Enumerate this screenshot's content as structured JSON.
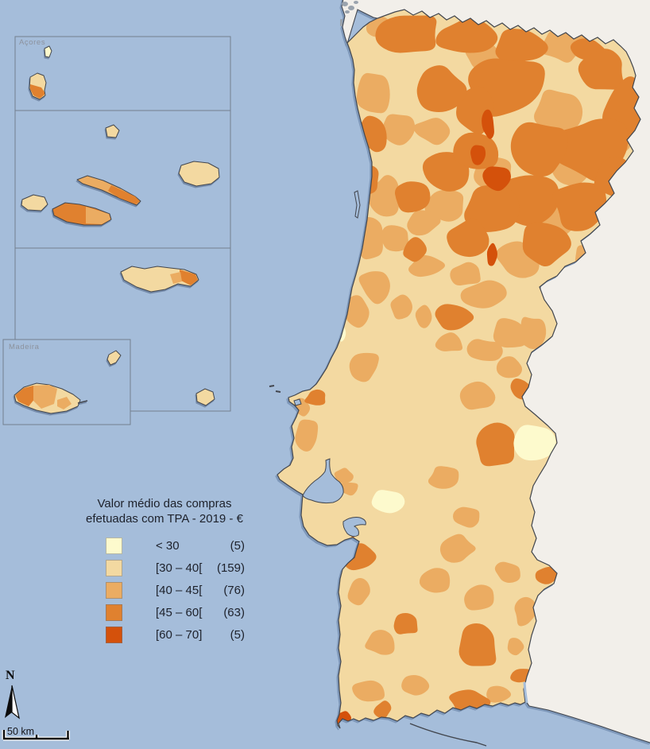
{
  "map": {
    "title_lines": [
      "Valor médio das compras",
      "efetuadas com TPA - 2019 -  €"
    ],
    "legend": [
      {
        "label": "< 30",
        "count": "(5)",
        "color": "#FDFACD"
      },
      {
        "label": "[30 – 40[",
        "count": "(159)",
        "color": "#F3D9A1"
      },
      {
        "label": "[40 – 45[",
        "count": "(76)",
        "color": "#EBAC62"
      },
      {
        "label": "[45 – 60[",
        "count": "(63)",
        "color": "#E0812F"
      },
      {
        "label": "[60 – 70]",
        "count": "(5)",
        "color": "#D4510B"
      }
    ],
    "insets": {
      "azores_label": "Açores",
      "madeira_label": "Madeira"
    },
    "north_label": "N",
    "scale_label": "50 km",
    "colors": {
      "ocean": "#A5BDDA",
      "foreign_land": "#F2EFEA",
      "outline": "#42464E",
      "inset_border": "#73808F",
      "label_gray": "#8C929D",
      "text": "#1D212B",
      "islet_gray": "#9AA3AD"
    },
    "patches": [
      [
        3,
        480,
        35,
        18,
        14
      ],
      [
        3,
        468,
        120,
        20,
        30
      ],
      [
        3,
        500,
        160,
        22,
        20
      ],
      [
        3,
        545,
        165,
        24,
        16
      ],
      [
        3,
        610,
        70,
        26,
        18
      ],
      [
        3,
        710,
        58,
        28,
        20
      ],
      [
        3,
        702,
        138,
        30,
        28
      ],
      [
        3,
        772,
        172,
        26,
        22
      ],
      [
        3,
        720,
        208,
        28,
        24
      ],
      [
        3,
        700,
        278,
        28,
        22
      ],
      [
        3,
        742,
        328,
        24,
        20
      ],
      [
        3,
        652,
        328,
        28,
        22
      ],
      [
        3,
        622,
        218,
        24,
        20
      ],
      [
        3,
        562,
        258,
        28,
        22
      ],
      [
        3,
        532,
        278,
        22,
        18
      ],
      [
        3,
        482,
        248,
        20,
        26
      ],
      [
        3,
        466,
        300,
        18,
        26
      ],
      [
        3,
        497,
        300,
        22,
        18
      ],
      [
        3,
        537,
        333,
        22,
        15
      ],
      [
        3,
        610,
        372,
        28,
        18
      ],
      [
        3,
        586,
        344,
        20,
        15
      ],
      [
        3,
        642,
        420,
        24,
        20
      ],
      [
        3,
        667,
        420,
        18,
        24
      ],
      [
        3,
        505,
        388,
        14,
        16
      ],
      [
        3,
        533,
        400,
        12,
        17
      ],
      [
        3,
        566,
        430,
        18,
        14
      ],
      [
        3,
        610,
        442,
        20,
        16
      ],
      [
        3,
        601,
        500,
        22,
        18
      ],
      [
        3,
        641,
        464,
        18,
        16
      ],
      [
        3,
        457,
        460,
        22,
        18
      ],
      [
        3,
        470,
        358,
        18,
        22
      ],
      [
        3,
        450,
        392,
        14,
        18
      ],
      [
        3,
        380,
        512,
        11,
        11
      ],
      [
        3,
        386,
        546,
        16,
        20
      ],
      [
        3,
        440,
        614,
        14,
        9
      ],
      [
        3,
        432,
        598,
        12,
        9
      ],
      [
        3,
        452,
        252,
        12,
        20
      ],
      [
        3,
        560,
        600,
        20,
        14
      ],
      [
        3,
        590,
        650,
        18,
        14
      ],
      [
        3,
        576,
        690,
        22,
        17
      ],
      [
        3,
        546,
        730,
        20,
        16
      ],
      [
        3,
        602,
        750,
        22,
        17
      ],
      [
        3,
        641,
        720,
        18,
        14
      ],
      [
        3,
        660,
        770,
        14,
        17
      ],
      [
        3,
        452,
        745,
        14,
        18
      ],
      [
        3,
        478,
        808,
        20,
        18
      ],
      [
        3,
        466,
        868,
        22,
        16
      ],
      [
        3,
        521,
        864,
        17,
        13
      ],
      [
        3,
        626,
        874,
        17,
        11
      ],
      [
        3,
        648,
        814,
        13,
        13
      ],
      [
        4,
        515,
        42,
        38,
        28
      ],
      [
        4,
        585,
        48,
        36,
        24
      ],
      [
        4,
        655,
        60,
        34,
        22
      ],
      [
        4,
        742,
        64,
        22,
        16
      ],
      [
        4,
        640,
        110,
        52,
        42
      ],
      [
        4,
        757,
        92,
        34,
        28
      ],
      [
        4,
        790,
        135,
        30,
        40
      ],
      [
        4,
        745,
        185,
        46,
        40
      ],
      [
        4,
        682,
        185,
        38,
        33
      ],
      [
        4,
        600,
        140,
        28,
        28
      ],
      [
        4,
        552,
        110,
        33,
        28
      ],
      [
        4,
        660,
        250,
        44,
        33
      ],
      [
        4,
        730,
        255,
        38,
        33
      ],
      [
        4,
        777,
        225,
        28,
        24
      ],
      [
        4,
        616,
        262,
        33,
        28
      ],
      [
        4,
        562,
        215,
        28,
        26
      ],
      [
        4,
        520,
        245,
        24,
        21
      ],
      [
        4,
        590,
        300,
        33,
        24
      ],
      [
        4,
        682,
        310,
        33,
        28
      ],
      [
        4,
        600,
        190,
        26,
        24
      ],
      [
        4,
        470,
        168,
        18,
        26
      ],
      [
        4,
        462,
        228,
        16,
        18
      ],
      [
        4,
        520,
        315,
        15,
        17
      ],
      [
        4,
        572,
        400,
        24,
        17
      ],
      [
        4,
        656,
        490,
        15,
        15
      ],
      [
        4,
        622,
        562,
        29,
        27
      ],
      [
        4,
        398,
        501,
        15,
        11
      ],
      [
        4,
        452,
        700,
        21,
        19
      ],
      [
        4,
        688,
        724,
        15,
        14
      ],
      [
        4,
        510,
        786,
        17,
        13
      ],
      [
        4,
        600,
        815,
        30,
        30
      ],
      [
        4,
        590,
        882,
        26,
        16
      ],
      [
        4,
        656,
        850,
        13,
        11
      ],
      [
        4,
        482,
        892,
        12,
        10
      ],
      [
        5,
        615,
        156,
        8,
        17
      ],
      [
        5,
        601,
        194,
        9,
        12
      ],
      [
        5,
        624,
        223,
        19,
        16
      ],
      [
        5,
        619,
        320,
        8,
        13
      ],
      [
        5,
        433,
        903,
        12,
        9
      ],
      [
        1,
        672,
        556,
        24,
        21
      ],
      [
        1,
        488,
        630,
        21,
        15
      ],
      [
        1,
        428,
        418,
        8,
        12
      ]
    ]
  },
  "chart_data": {
    "type": "choropleth",
    "title": "Valor médio das compras efetuadas com TPA - 2019 - €",
    "unit": "€",
    "region": "Portugal (mainland, Açores, Madeira) by municipality",
    "classes": [
      {
        "range": "< 30",
        "municipalities": 5
      },
      {
        "range": "[30 – 40[",
        "municipalities": 159
      },
      {
        "range": "[40 – 45[",
        "municipalities": 76
      },
      {
        "range": "[45 – 60[",
        "municipalities": 63
      },
      {
        "range": "[60 – 70]",
        "municipalities": 5
      }
    ],
    "legend_position": "left",
    "scale_bar": "50 km",
    "north_arrow": true
  }
}
